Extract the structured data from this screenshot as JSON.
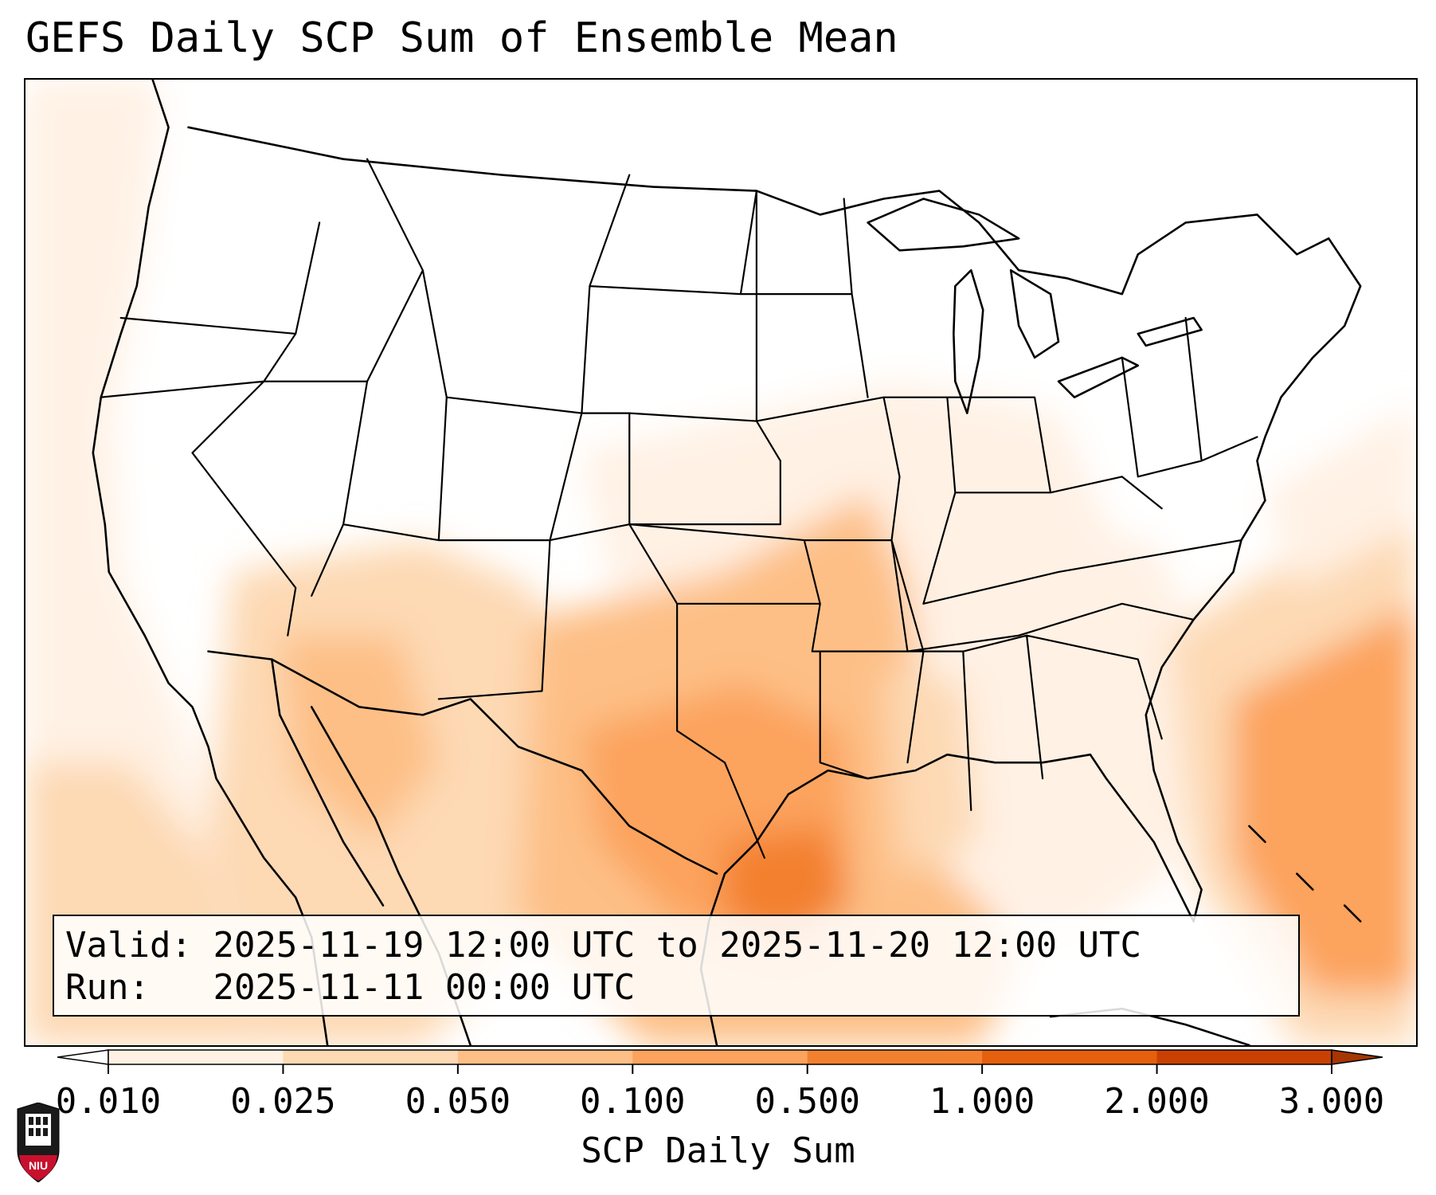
{
  "title": "GEFS Daily SCP Sum of Ensemble Mean",
  "info": {
    "valid_label": "Valid:",
    "valid_value": "2025-11-19 12:00 UTC to 2025-11-20 12:00 UTC",
    "run_label": "Run:",
    "run_value": "2025-11-11 00:00 UTC"
  },
  "colorbar": {
    "label": "SCP Daily Sum",
    "ticks": [
      "0.010",
      "0.025",
      "0.050",
      "0.100",
      "0.500",
      "1.000",
      "2.000",
      "3.000"
    ],
    "colors": [
      "#fff1e4",
      "#fdd9b4",
      "#fdbf86",
      "#fca35d",
      "#f3802f",
      "#e4600e",
      "#c94102"
    ],
    "under_color": "#ffffff",
    "over_color": "#a63603"
  },
  "map": {
    "projection": "Lambert Conformal",
    "region": "CONUS",
    "features": [
      "state-borders",
      "coastlines",
      "national-borders"
    ]
  },
  "logo": {
    "icon": "niu-logo-icon",
    "text": "NIU"
  }
}
